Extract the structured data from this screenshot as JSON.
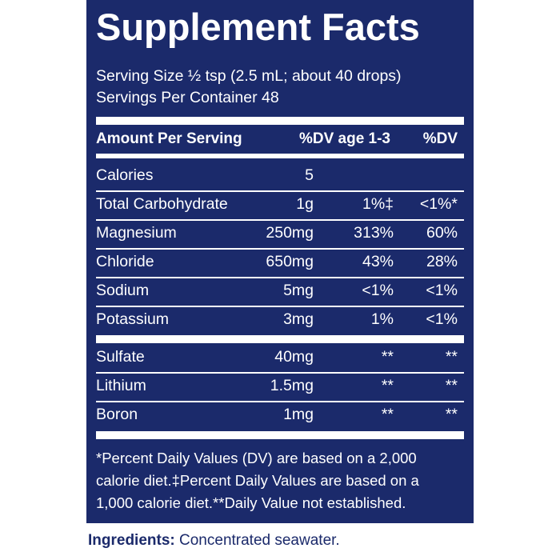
{
  "header": {
    "title": "Supplement Facts"
  },
  "serving": {
    "size": "Serving Size ½ tsp (2.5 mL; about 40 drops)",
    "servings": "Servings Per Container 48"
  },
  "table": {
    "columns": [
      "Amount Per Serving",
      "%DV age 1-3",
      "%DV"
    ],
    "groups": [
      {
        "rows": [
          {
            "name": "Calories",
            "amount": "5"
          },
          {
            "name": "Total Carbohydrate",
            "amount": "1g",
            "dv_child": "1%‡",
            "dv": "<1%*"
          },
          {
            "name": "Magnesium",
            "amount": "250mg",
            "dv_child": "313%",
            "dv": "60%"
          },
          {
            "name": "Chloride",
            "amount": "650mg",
            "dv_child": "43%",
            "dv": "28%"
          },
          {
            "name": "Sodium",
            "amount": "5mg",
            "dv_child": "<1%",
            "dv": "<1%"
          },
          {
            "name": "Potassium",
            "amount": "3mg",
            "dv_child": "1%",
            "dv": "<1%"
          }
        ]
      },
      {
        "rows": [
          {
            "name": "Sulfate",
            "amount": "40mg",
            "dv_child": "**",
            "dv": "**"
          },
          {
            "name": "Lithium",
            "amount": "1.5mg",
            "dv_child": "**",
            "dv": "**"
          },
          {
            "name": "Boron",
            "amount": "1mg",
            "dv_child": "**",
            "dv": "**"
          }
        ]
      }
    ]
  },
  "footnote": {
    "lines": [
      "*Percent Daily Values (DV) are based on a 2,000",
      "calorie diet.‡Percent Daily Values are based on a",
      "1,000 calorie diet.**Daily Value not established."
    ]
  },
  "ingredients": {
    "label": "Ingredients:",
    "text": "Concentrated seawater."
  }
}
